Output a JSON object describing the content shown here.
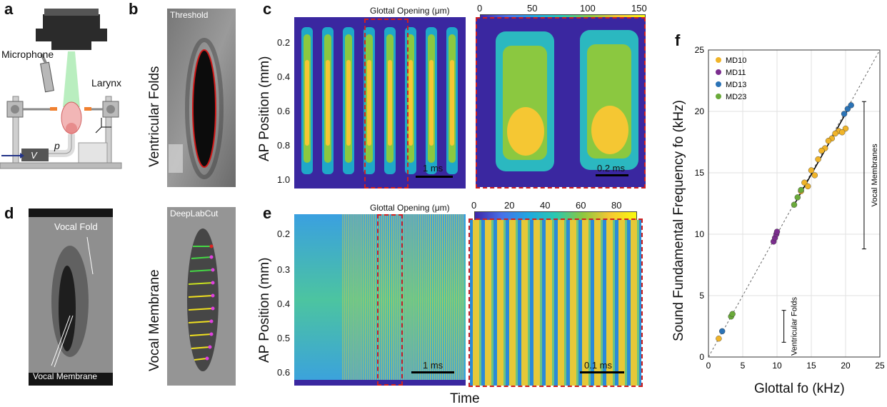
{
  "panels": {
    "a": "a",
    "b": "b",
    "c": "c",
    "d": "d",
    "e": "e",
    "f": "f"
  },
  "a": {
    "microphone": "Microphone",
    "larynx": "Larynx",
    "p": "p",
    "v": "V"
  },
  "b": {
    "threshold": "Threshold",
    "deeplabcut": "DeepLabCut",
    "ventricular": "Ventricular Folds",
    "membrane": "Vocal Membrane"
  },
  "d": {
    "vocal_fold": "Vocal Fold",
    "vocal_membrane": "Vocal Membrane"
  },
  "c": {
    "colorbar_title": "Glottal Opening (μm)",
    "colorbar_ticks": [
      "0",
      "50",
      "100",
      "150"
    ],
    "ylabel": "AP Position (mm)",
    "yticks": [
      "0.2",
      "0.4",
      "0.6",
      "0.8",
      "1.0"
    ],
    "scale_left": "1 ms",
    "scale_right": "0.2 ms"
  },
  "e": {
    "colorbar_title": "Glottal Opening (μm)",
    "colorbar_ticks": [
      "0",
      "20",
      "40",
      "60",
      "80"
    ],
    "ylabel": "AP Position (mm)",
    "yticks": [
      "0.2",
      "0.3",
      "0.4",
      "0.5",
      "0.6"
    ],
    "scale_left": "1 ms",
    "scale_right": "0.1 ms"
  },
  "time_label": "Time",
  "chart_data": {
    "type": "scatter",
    "title": "",
    "xlabel": "Glottal fo (kHz)",
    "ylabel": "Sound Fundamental Frequency fo (kHz)",
    "xlim": [
      0,
      25
    ],
    "ylim": [
      0,
      25
    ],
    "xticks": [
      "0",
      "5",
      "10",
      "15",
      "20",
      "25"
    ],
    "yticks": [
      "0",
      "5",
      "10",
      "15",
      "20",
      "25"
    ],
    "legend_position": "top-left",
    "series": [
      {
        "name": "MD10",
        "color": "#f0b429",
        "points": [
          [
            1.5,
            1.5
          ],
          [
            13.5,
            13.5
          ],
          [
            14,
            14.2
          ],
          [
            15,
            15.2
          ],
          [
            16,
            16.1
          ],
          [
            17,
            17
          ],
          [
            18,
            17.8
          ],
          [
            19,
            18.4
          ],
          [
            20,
            18.6
          ],
          [
            15.5,
            14.8
          ],
          [
            16.5,
            16.8
          ],
          [
            18.5,
            18.2
          ],
          [
            14.5,
            13.9
          ],
          [
            17.5,
            17.6
          ],
          [
            19.5,
            18.3
          ]
        ]
      },
      {
        "name": "MD11",
        "color": "#7b2d8e",
        "points": [
          [
            9.5,
            9.4
          ],
          [
            9.7,
            9.7
          ],
          [
            9.9,
            10
          ],
          [
            10,
            10.2
          ]
        ]
      },
      {
        "name": "MD13",
        "color": "#2b73b6",
        "points": [
          [
            2,
            2.1
          ],
          [
            19.8,
            19.8
          ],
          [
            20.3,
            20.2
          ],
          [
            20.8,
            20.5
          ]
        ]
      },
      {
        "name": "MD23",
        "color": "#6aaa3a",
        "points": [
          [
            3.3,
            3.3
          ],
          [
            3.5,
            3.5
          ],
          [
            12.5,
            12.4
          ],
          [
            13,
            13
          ],
          [
            13.5,
            13.6
          ]
        ]
      }
    ],
    "annotations": [
      {
        "text": "Vocal Membranes",
        "y_range": [
          8.8,
          20.8
        ]
      },
      {
        "text": "Ventricular Folds",
        "y_range": [
          1.2,
          3.8
        ]
      }
    ]
  }
}
